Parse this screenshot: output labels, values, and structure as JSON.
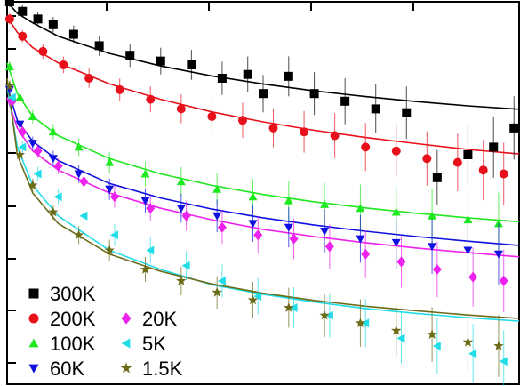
{
  "chart_data": {
    "type": "scatter",
    "title": "",
    "xlabel": "",
    "ylabel": "",
    "xlim": [
      0,
      1
    ],
    "ylim": [
      0,
      1
    ],
    "grid": false,
    "legend_position": "bottom-left",
    "series": [
      {
        "name": "300K",
        "color": "#000000",
        "marker": "square",
        "x": [
          0.005,
          0.03,
          0.06,
          0.09,
          0.13,
          0.18,
          0.24,
          0.3,
          0.36,
          0.42,
          0.47,
          0.5,
          0.55,
          0.6,
          0.66,
          0.72,
          0.78,
          0.84,
          0.9,
          0.95,
          0.99
        ],
        "y": [
          1.0,
          0.975,
          0.955,
          0.94,
          0.915,
          0.885,
          0.86,
          0.845,
          0.835,
          0.8,
          0.81,
          0.76,
          0.805,
          0.76,
          0.74,
          0.72,
          0.71,
          0.54,
          0.6,
          0.62,
          0.67
        ],
        "fit": [
          [
            0.0,
            1.0
          ],
          [
            0.02,
            0.97
          ],
          [
            0.05,
            0.945
          ],
          [
            0.1,
            0.91
          ],
          [
            0.2,
            0.865
          ],
          [
            0.3,
            0.832
          ],
          [
            0.4,
            0.806
          ],
          [
            0.5,
            0.785
          ],
          [
            0.6,
            0.767
          ],
          [
            0.7,
            0.752
          ],
          [
            0.8,
            0.739
          ],
          [
            0.9,
            0.728
          ],
          [
            1.0,
            0.719
          ]
        ]
      },
      {
        "name": "200K",
        "color": "#e8101a",
        "marker": "circle",
        "x": [
          0.005,
          0.03,
          0.07,
          0.11,
          0.16,
          0.22,
          0.28,
          0.34,
          0.4,
          0.46,
          0.52,
          0.58,
          0.64,
          0.7,
          0.76,
          0.82,
          0.88,
          0.93,
          0.97
        ],
        "y": [
          0.955,
          0.91,
          0.87,
          0.835,
          0.8,
          0.77,
          0.745,
          0.72,
          0.7,
          0.69,
          0.67,
          0.66,
          0.65,
          0.62,
          0.61,
          0.59,
          0.58,
          0.56,
          0.55
        ],
        "fit": [
          [
            0.0,
            0.96
          ],
          [
            0.02,
            0.92
          ],
          [
            0.05,
            0.88
          ],
          [
            0.1,
            0.84
          ],
          [
            0.2,
            0.785
          ],
          [
            0.3,
            0.745
          ],
          [
            0.4,
            0.712
          ],
          [
            0.5,
            0.686
          ],
          [
            0.6,
            0.664
          ],
          [
            0.7,
            0.645
          ],
          [
            0.8,
            0.629
          ],
          [
            0.9,
            0.614
          ],
          [
            1.0,
            0.602
          ]
        ]
      },
      {
        "name": "100K",
        "color": "#1ee81e",
        "marker": "triangle-up",
        "x": [
          0.005,
          0.025,
          0.05,
          0.09,
          0.14,
          0.2,
          0.27,
          0.34,
          0.41,
          0.48,
          0.55,
          0.62,
          0.69,
          0.76,
          0.83,
          0.9,
          0.96
        ],
        "y": [
          0.83,
          0.75,
          0.7,
          0.66,
          0.62,
          0.58,
          0.55,
          0.53,
          0.51,
          0.49,
          0.48,
          0.47,
          0.46,
          0.45,
          0.44,
          0.43,
          0.42
        ],
        "fit": [
          [
            0.0,
            0.84
          ],
          [
            0.02,
            0.76
          ],
          [
            0.05,
            0.7
          ],
          [
            0.1,
            0.65
          ],
          [
            0.2,
            0.59
          ],
          [
            0.3,
            0.55
          ],
          [
            0.4,
            0.52
          ],
          [
            0.5,
            0.496
          ],
          [
            0.6,
            0.477
          ],
          [
            0.7,
            0.461
          ],
          [
            0.8,
            0.447
          ],
          [
            0.9,
            0.435
          ],
          [
            1.0,
            0.425
          ]
        ]
      },
      {
        "name": "60K",
        "color": "#1010e0",
        "marker": "triangle-down",
        "x": [
          0.005,
          0.025,
          0.05,
          0.09,
          0.14,
          0.2,
          0.27,
          0.34,
          0.41,
          0.48,
          0.55,
          0.62,
          0.69,
          0.76,
          0.83,
          0.9,
          0.96
        ],
        "y": [
          0.77,
          0.68,
          0.63,
          0.59,
          0.55,
          0.51,
          0.48,
          0.46,
          0.44,
          0.42,
          0.41,
          0.4,
          0.38,
          0.37,
          0.36,
          0.35,
          0.34
        ],
        "fit": [
          [
            0.0,
            0.78
          ],
          [
            0.02,
            0.69
          ],
          [
            0.05,
            0.635
          ],
          [
            0.1,
            0.585
          ],
          [
            0.2,
            0.525
          ],
          [
            0.3,
            0.487
          ],
          [
            0.4,
            0.458
          ],
          [
            0.5,
            0.435
          ],
          [
            0.6,
            0.416
          ],
          [
            0.7,
            0.4
          ],
          [
            0.8,
            0.386
          ],
          [
            0.9,
            0.374
          ],
          [
            1.0,
            0.363
          ]
        ]
      },
      {
        "name": "20K",
        "color": "#ee22ee",
        "marker": "diamond",
        "x": [
          0.01,
          0.03,
          0.06,
          0.1,
          0.15,
          0.21,
          0.28,
          0.35,
          0.42,
          0.49,
          0.56,
          0.63,
          0.7,
          0.77,
          0.84,
          0.91,
          0.97
        ],
        "y": [
          0.74,
          0.66,
          0.61,
          0.57,
          0.53,
          0.49,
          0.46,
          0.44,
          0.41,
          0.39,
          0.38,
          0.36,
          0.34,
          0.32,
          0.3,
          0.28,
          0.27
        ],
        "fit": [
          [
            0.0,
            0.75
          ],
          [
            0.02,
            0.67
          ],
          [
            0.05,
            0.61
          ],
          [
            0.1,
            0.56
          ],
          [
            0.2,
            0.5
          ],
          [
            0.3,
            0.46
          ],
          [
            0.4,
            0.43
          ],
          [
            0.5,
            0.405
          ],
          [
            0.6,
            0.386
          ],
          [
            0.7,
            0.37
          ],
          [
            0.8,
            0.356
          ],
          [
            0.9,
            0.344
          ],
          [
            1.0,
            0.333
          ]
        ]
      },
      {
        "name": "5K",
        "color": "#22dde8",
        "marker": "triangle-left",
        "x": [
          0.01,
          0.03,
          0.06,
          0.1,
          0.15,
          0.21,
          0.28,
          0.35,
          0.42,
          0.49,
          0.56,
          0.63,
          0.7,
          0.77,
          0.84,
          0.91,
          0.97
        ],
        "y": [
          0.75,
          0.62,
          0.55,
          0.49,
          0.44,
          0.39,
          0.35,
          0.31,
          0.27,
          0.23,
          0.2,
          0.18,
          0.16,
          0.12,
          0.1,
          0.08,
          0.06
        ],
        "fit": [
          [
            0.0,
            0.78
          ],
          [
            0.02,
            0.62
          ],
          [
            0.05,
            0.52
          ],
          [
            0.1,
            0.44
          ],
          [
            0.2,
            0.35
          ],
          [
            0.3,
            0.3
          ],
          [
            0.4,
            0.26
          ],
          [
            0.5,
            0.235
          ],
          [
            0.6,
            0.215
          ],
          [
            0.7,
            0.198
          ],
          [
            0.8,
            0.185
          ],
          [
            0.9,
            0.174
          ],
          [
            1.0,
            0.165
          ]
        ]
      },
      {
        "name": "1.5K",
        "color": "#6b6b18",
        "marker": "star",
        "x": [
          0.005,
          0.025,
          0.05,
          0.09,
          0.14,
          0.2,
          0.27,
          0.34,
          0.41,
          0.48,
          0.55,
          0.62,
          0.69,
          0.76,
          0.83,
          0.9,
          0.96
        ],
        "y": [
          0.78,
          0.6,
          0.52,
          0.45,
          0.39,
          0.35,
          0.3,
          0.27,
          0.24,
          0.22,
          0.2,
          0.18,
          0.16,
          0.14,
          0.13,
          0.11,
          0.1
        ],
        "fit": [
          [
            0.0,
            0.8
          ],
          [
            0.02,
            0.6
          ],
          [
            0.05,
            0.5
          ],
          [
            0.1,
            0.42
          ],
          [
            0.2,
            0.34
          ],
          [
            0.3,
            0.295
          ],
          [
            0.4,
            0.262
          ],
          [
            0.5,
            0.238
          ],
          [
            0.6,
            0.219
          ],
          [
            0.7,
            0.204
          ],
          [
            0.8,
            0.192
          ],
          [
            0.9,
            0.181
          ],
          [
            1.0,
            0.172
          ]
        ]
      }
    ],
    "legend": {
      "entries": [
        {
          "label": "300K",
          "marker": "square",
          "color": "#000000"
        },
        {
          "label": "200K",
          "marker": "circle",
          "color": "#e8101a"
        },
        {
          "label": "20K",
          "marker": "diamond",
          "color": "#ee22ee"
        },
        {
          "label": "100K",
          "marker": "triangle-up",
          "color": "#1ee81e"
        },
        {
          "label": "5K",
          "marker": "triangle-left",
          "color": "#22dde8"
        },
        {
          "label": "60K",
          "marker": "triangle-down",
          "color": "#1010e0"
        },
        {
          "label": "1.5K",
          "marker": "star",
          "color": "#6b6b18"
        }
      ]
    }
  }
}
